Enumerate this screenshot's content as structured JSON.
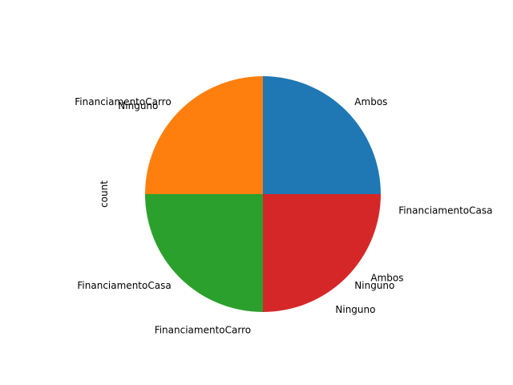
{
  "chart_data": {
    "type": "pie",
    "ylabel": "count",
    "slices": [
      {
        "outer_label": "Ambos",
        "value": 1,
        "color": "#1f77b4",
        "label_radius": 1.1
      },
      {
        "outer_label": "FinanciamentoCarro",
        "value": 1,
        "color": "#ff7f0e",
        "label_radius": 1.1
      },
      {
        "outer_label": "FinanciamentoCasa",
        "value": 1,
        "color": "#2ca02c",
        "label_radius": 1.1
      },
      {
        "outer_label": "Ninguno",
        "value": 1,
        "color": "#d62728",
        "label_radius": 1.1
      }
    ],
    "extra_labels": [
      {
        "text": "FinanciamentoCasa",
        "angle_deg": -7,
        "radius": 1.16
      },
      {
        "text": "Ambos",
        "angle_deg": -38,
        "radius": 1.16
      },
      {
        "text": "Ninguno",
        "angle_deg": -58,
        "radius": 1.16
      },
      {
        "text": "FinanciamentoCarro",
        "angle_deg": -95,
        "radius": 1.16
      },
      {
        "text": "Ninguno",
        "angle_deg": 140,
        "radius": 1.16
      }
    ]
  }
}
